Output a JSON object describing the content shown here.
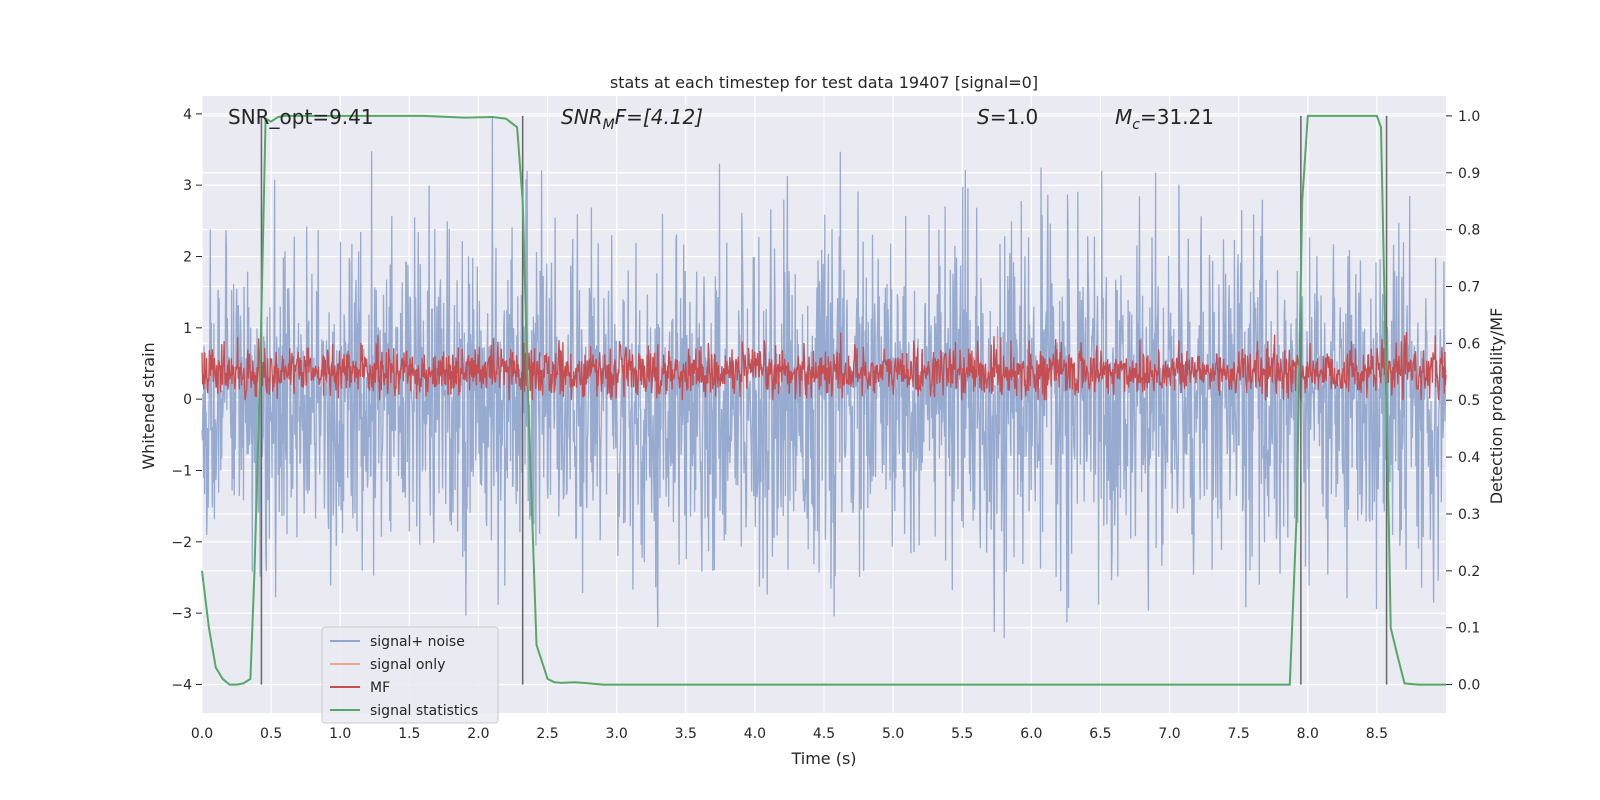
{
  "chart_data": {
    "type": "line",
    "title": "stats at each timestep for test data 19407 [signal=0]",
    "xlabel": "Time (s)",
    "ylabel_left": "Whitened strain",
    "ylabel_right": "Detection probability/MF",
    "xlim": [
      0.0,
      9.0
    ],
    "ylim_left": [
      -4.4,
      4.25
    ],
    "ylim_right": [
      -0.05,
      1.035
    ],
    "xticks": [
      0.0,
      0.5,
      1.0,
      1.5,
      2.0,
      2.5,
      3.0,
      3.5,
      4.0,
      4.5,
      5.0,
      5.5,
      6.0,
      6.5,
      7.0,
      7.5,
      8.0,
      8.5
    ],
    "xtick_labels": [
      "0.0",
      "0.5",
      "1.0",
      "1.5",
      "2.0",
      "2.5",
      "3.0",
      "3.5",
      "4.0",
      "4.5",
      "5.0",
      "5.5",
      "6.0",
      "6.5",
      "7.0",
      "7.5",
      "8.0",
      "8.5"
    ],
    "yticks_left": [
      4,
      3,
      2,
      1,
      0,
      -1,
      -2,
      -3,
      -4
    ],
    "ytick_labels_left": [
      "4",
      "3",
      "2",
      "1",
      "0",
      "−1",
      "−2",
      "−3",
      "−4"
    ],
    "yticks_right": [
      1.0,
      0.9,
      0.8,
      0.7,
      0.6,
      0.5,
      0.4,
      0.3,
      0.2,
      0.1,
      0.0
    ],
    "ytick_labels_right": [
      "1.0",
      "0.9",
      "0.8",
      "0.7",
      "0.6",
      "0.5",
      "0.4",
      "0.3",
      "0.2",
      "0.1",
      "0.0"
    ],
    "annotations": {
      "snr_opt": "SNR_opt=9.41",
      "snr_mf_sym": "SNR",
      "snr_mf_sub": "M",
      "snr_mf_rest": "F=[4.12]",
      "s_sym": "S",
      "s_rest": "=1.0",
      "mc_sym": "M",
      "mc_sub": "c",
      "mc_rest": "=31.21"
    },
    "legend": [
      "signal+ noise",
      "signal only",
      "MF",
      "signal statistics"
    ],
    "legend_position": "lower-left",
    "series": [
      {
        "name": "signal+ noise",
        "axis": "left",
        "color": "#92a6cd",
        "description": "dense whitened strain noise, roughly between -3.8 and 3.9",
        "noise_amplitude": 1.0
      },
      {
        "name": "signal only",
        "axis": "left",
        "color": "#eaa98f",
        "values": []
      },
      {
        "name": "MF",
        "axis": "right",
        "color": "#c44e52",
        "baseline": 0.55,
        "range": [
          0.5,
          0.62
        ]
      },
      {
        "name": "signal statistics",
        "axis": "right",
        "color": "#55a868",
        "x": [
          0.0,
          0.05,
          0.1,
          0.15,
          0.2,
          0.25,
          0.3,
          0.35,
          0.38,
          0.42,
          0.46,
          0.5,
          0.55,
          0.6,
          0.8,
          1.0,
          1.3,
          1.6,
          1.9,
          2.1,
          2.2,
          2.28,
          2.32,
          2.36,
          2.42,
          2.5,
          2.55,
          2.6,
          2.7,
          2.8,
          2.9,
          3.0,
          4.0,
          5.0,
          6.0,
          7.0,
          7.8,
          7.87,
          7.92,
          7.96,
          8.0,
          8.05,
          8.1,
          8.5,
          8.53,
          8.57,
          8.6,
          8.65,
          8.7,
          8.8,
          8.9,
          9.0
        ],
        "values": [
          0.2,
          0.1,
          0.03,
          0.01,
          0.0,
          0.0,
          0.002,
          0.01,
          0.2,
          0.55,
          0.995,
          0.99,
          0.998,
          1.0,
          1.0,
          1.0,
          1.0,
          1.0,
          0.997,
          0.998,
          0.995,
          0.98,
          0.85,
          0.5,
          0.07,
          0.01,
          0.004,
          0.003,
          0.004,
          0.002,
          0.0,
          0.0,
          0.0,
          0.0,
          0.0,
          0.0,
          0.0,
          0.0,
          0.3,
          0.85,
          1.0,
          1.0,
          1.0,
          1.0,
          0.98,
          0.5,
          0.1,
          0.05,
          0.002,
          0.0,
          0.0,
          0.0
        ]
      }
    ],
    "vlines": [
      0.43,
      2.32,
      7.95,
      8.57
    ],
    "vline_color": "#666666",
    "colors": {
      "background": "#eaeaf2",
      "grid": "#ffffff",
      "text": "#262626"
    }
  }
}
